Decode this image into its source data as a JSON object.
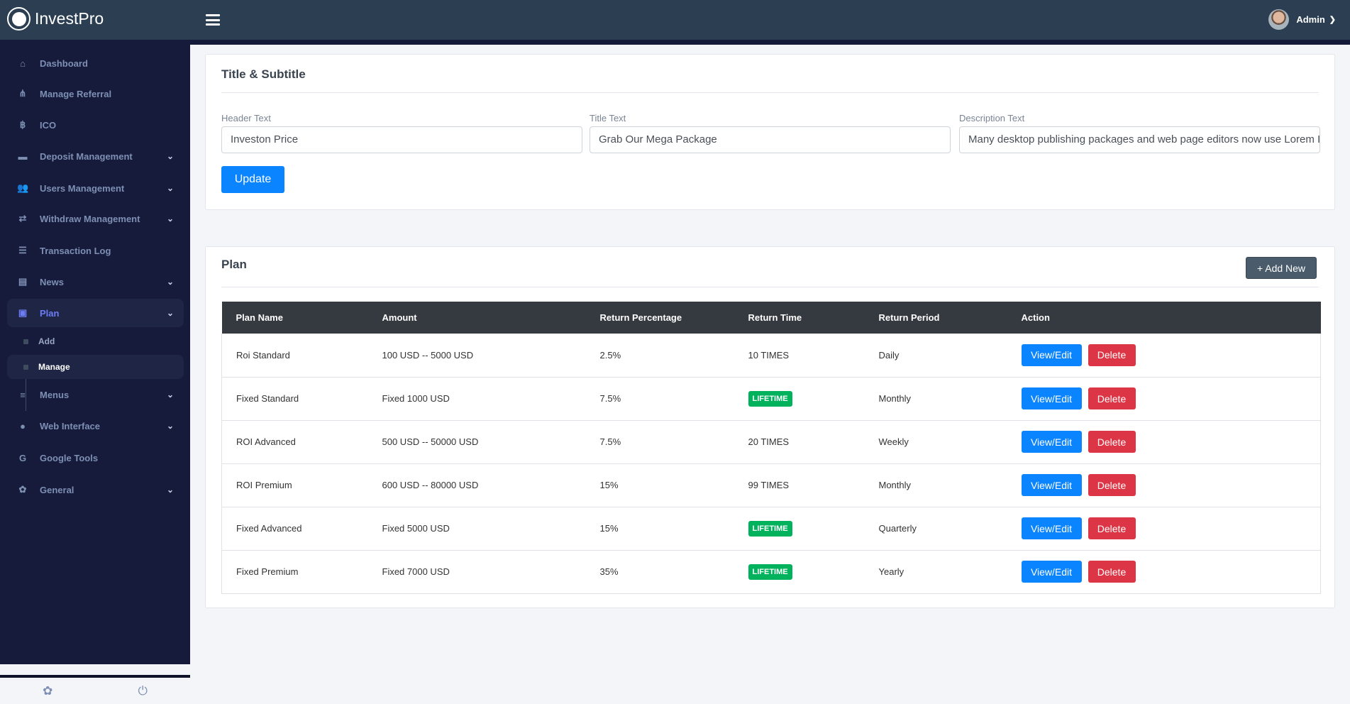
{
  "app": {
    "name": "InvestPro",
    "user": "Admin"
  },
  "sidebar": {
    "items": [
      {
        "label": "Dashboard",
        "icon": "home-icon",
        "glyph": "⌂"
      },
      {
        "label": "Manage Referral",
        "icon": "sitemap-icon",
        "glyph": "⋔"
      },
      {
        "label": "ICO",
        "icon": "bitcoin-icon",
        "glyph": "฿"
      },
      {
        "label": "Deposit Management",
        "icon": "credit-card-icon",
        "glyph": "▬"
      },
      {
        "label": "Users Management",
        "icon": "users-icon",
        "glyph": "👥"
      },
      {
        "label": "Withdraw Management",
        "icon": "retweet-icon",
        "glyph": "⇄"
      },
      {
        "label": "Transaction Log",
        "icon": "list-icon",
        "glyph": "☰"
      },
      {
        "label": "News",
        "icon": "newspaper-icon",
        "glyph": "▤"
      },
      {
        "label": "Plan",
        "icon": "briefcase-icon",
        "glyph": "▣"
      },
      {
        "label": "Menus",
        "icon": "bars-icon",
        "glyph": "≡"
      },
      {
        "label": "Web Interface",
        "icon": "globe-icon",
        "glyph": "●"
      },
      {
        "label": "Google Tools",
        "icon": "google-icon",
        "glyph": "G"
      },
      {
        "label": "General",
        "icon": "cog-icon",
        "glyph": "✿"
      }
    ],
    "plan_sub": [
      {
        "label": "Add"
      },
      {
        "label": "Manage"
      }
    ]
  },
  "title_card": {
    "title": "Title & Subtitle",
    "header_label": "Header Text",
    "header_value": "Investon Price",
    "title_label": "Title Text",
    "title_value": "Grab Our Mega Package",
    "desc_label": "Description Text",
    "desc_value": "Many desktop publishing packages and web page editors now use Lorem Ipsum",
    "update": "Update"
  },
  "plan_card": {
    "title": "Plan",
    "add_new": "+ Add New",
    "columns": [
      "Plan Name",
      "Amount",
      "Return Percentage",
      "Return Time",
      "Return Period",
      "Action"
    ],
    "rows": [
      {
        "name": "Roi Standard",
        "amount": "100 USD -- 5000 USD",
        "pct": "2.5%",
        "time": "10 TIMES",
        "badge": false,
        "period": "Daily"
      },
      {
        "name": "Fixed Standard",
        "amount": "Fixed 1000 USD",
        "pct": "7.5%",
        "time": "LIFETIME",
        "badge": true,
        "period": "Monthly"
      },
      {
        "name": "ROI Advanced",
        "amount": "500 USD -- 50000 USD",
        "pct": "7.5%",
        "time": "20 TIMES",
        "badge": false,
        "period": "Weekly"
      },
      {
        "name": "ROI Premium",
        "amount": "600 USD -- 80000 USD",
        "pct": "15%",
        "time": "99 TIMES",
        "badge": false,
        "period": "Monthly"
      },
      {
        "name": "Fixed Advanced",
        "amount": "Fixed 5000 USD",
        "pct": "15%",
        "time": "LIFETIME",
        "badge": true,
        "period": "Quarterly"
      },
      {
        "name": "Fixed Premium",
        "amount": "Fixed 7000 USD",
        "pct": "35%",
        "time": "LIFETIME",
        "badge": true,
        "period": "Yearly"
      }
    ],
    "edit": "View/Edit",
    "delete": "Delete"
  }
}
